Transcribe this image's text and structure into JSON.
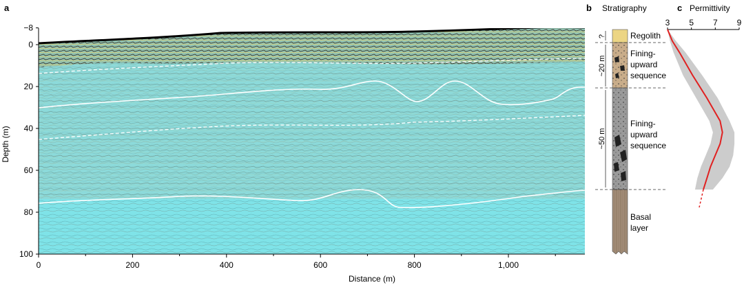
{
  "panel_a": {
    "label": "a",
    "xlabel": "Distance (m)",
    "ylabel": "Depth (m)",
    "x_ticks": [
      "0",
      "200",
      "400",
      "600",
      "800",
      "1,000"
    ],
    "y_ticks": [
      "−8",
      "0",
      "20",
      "40",
      "60",
      "80",
      "100"
    ]
  },
  "panel_b": {
    "label": "b",
    "title": "Stratigraphy",
    "units": [
      "Regolith",
      "Fining-",
      "upward",
      "sequence",
      "Fining-",
      "upward",
      "sequence",
      "Basal",
      "layer"
    ],
    "thickness_labels": [
      "?",
      "~20 m",
      "~50 m"
    ]
  },
  "panel_c": {
    "label": "c",
    "title": "Permittivity",
    "x_ticks": [
      "3",
      "5",
      "7",
      "9"
    ]
  },
  "colors": {
    "radar_background": "#7fe3e8",
    "boundary_line": "#ffffff",
    "surface_line": "#000000",
    "regolith": "#ecd584",
    "upper_sequence": "#c9ad8a",
    "lower_sequence": "#9a9a9a",
    "basal_layer": "#a38d78",
    "permittivity_curve": "#e02020",
    "uncertainty_band": "#cccccc"
  },
  "chart_data": {
    "type": "line",
    "title": "Permittivity",
    "x_axis": "Permittivity",
    "y_axis": "Depth (m)",
    "xlim": [
      3,
      9
    ],
    "ylim": [
      0,
      100
    ],
    "series": [
      {
        "values_depth": [
          0,
          5,
          10,
          20,
          30,
          40,
          45,
          50,
          55,
          60,
          65,
          70
        ],
        "values_permittivity": [
          3.0,
          3.4,
          4.0,
          5.1,
          6.3,
          7.4,
          7.6,
          7.4,
          7.0,
          6.6,
          6.3,
          6.0
        ]
      }
    ],
    "uncertainty_band": {
      "depth": [
        0,
        5,
        10,
        20,
        30,
        40,
        45,
        50,
        55,
        60,
        65,
        70
      ],
      "lower": [
        3.0,
        3.2,
        3.5,
        4.3,
        5.4,
        6.5,
        6.8,
        6.6,
        6.2,
        5.8,
        5.5,
        5.3
      ],
      "upper": [
        3.0,
        3.7,
        4.5,
        5.9,
        7.2,
        8.2,
        8.6,
        8.6,
        8.5,
        8.2,
        7.6,
        6.8
      ]
    }
  }
}
